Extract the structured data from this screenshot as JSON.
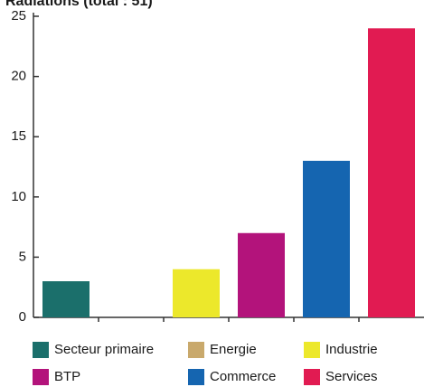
{
  "chart_data": {
    "type": "bar",
    "title": "Radiations (total : 51)",
    "categories": [
      "Secteur primaire",
      "Energie",
      "Industrie",
      "BTP",
      "Commerce",
      "Services"
    ],
    "values": [
      3,
      0,
      4,
      7,
      13,
      24
    ],
    "colors": [
      "#1b6f6b",
      "#c9a96c",
      "#ece82b",
      "#b3137b",
      "#1565b0",
      "#e11b52"
    ],
    "ylim": [
      0,
      25
    ],
    "yticks": [
      0,
      5,
      10,
      15,
      20,
      25
    ],
    "grid": false
  }
}
